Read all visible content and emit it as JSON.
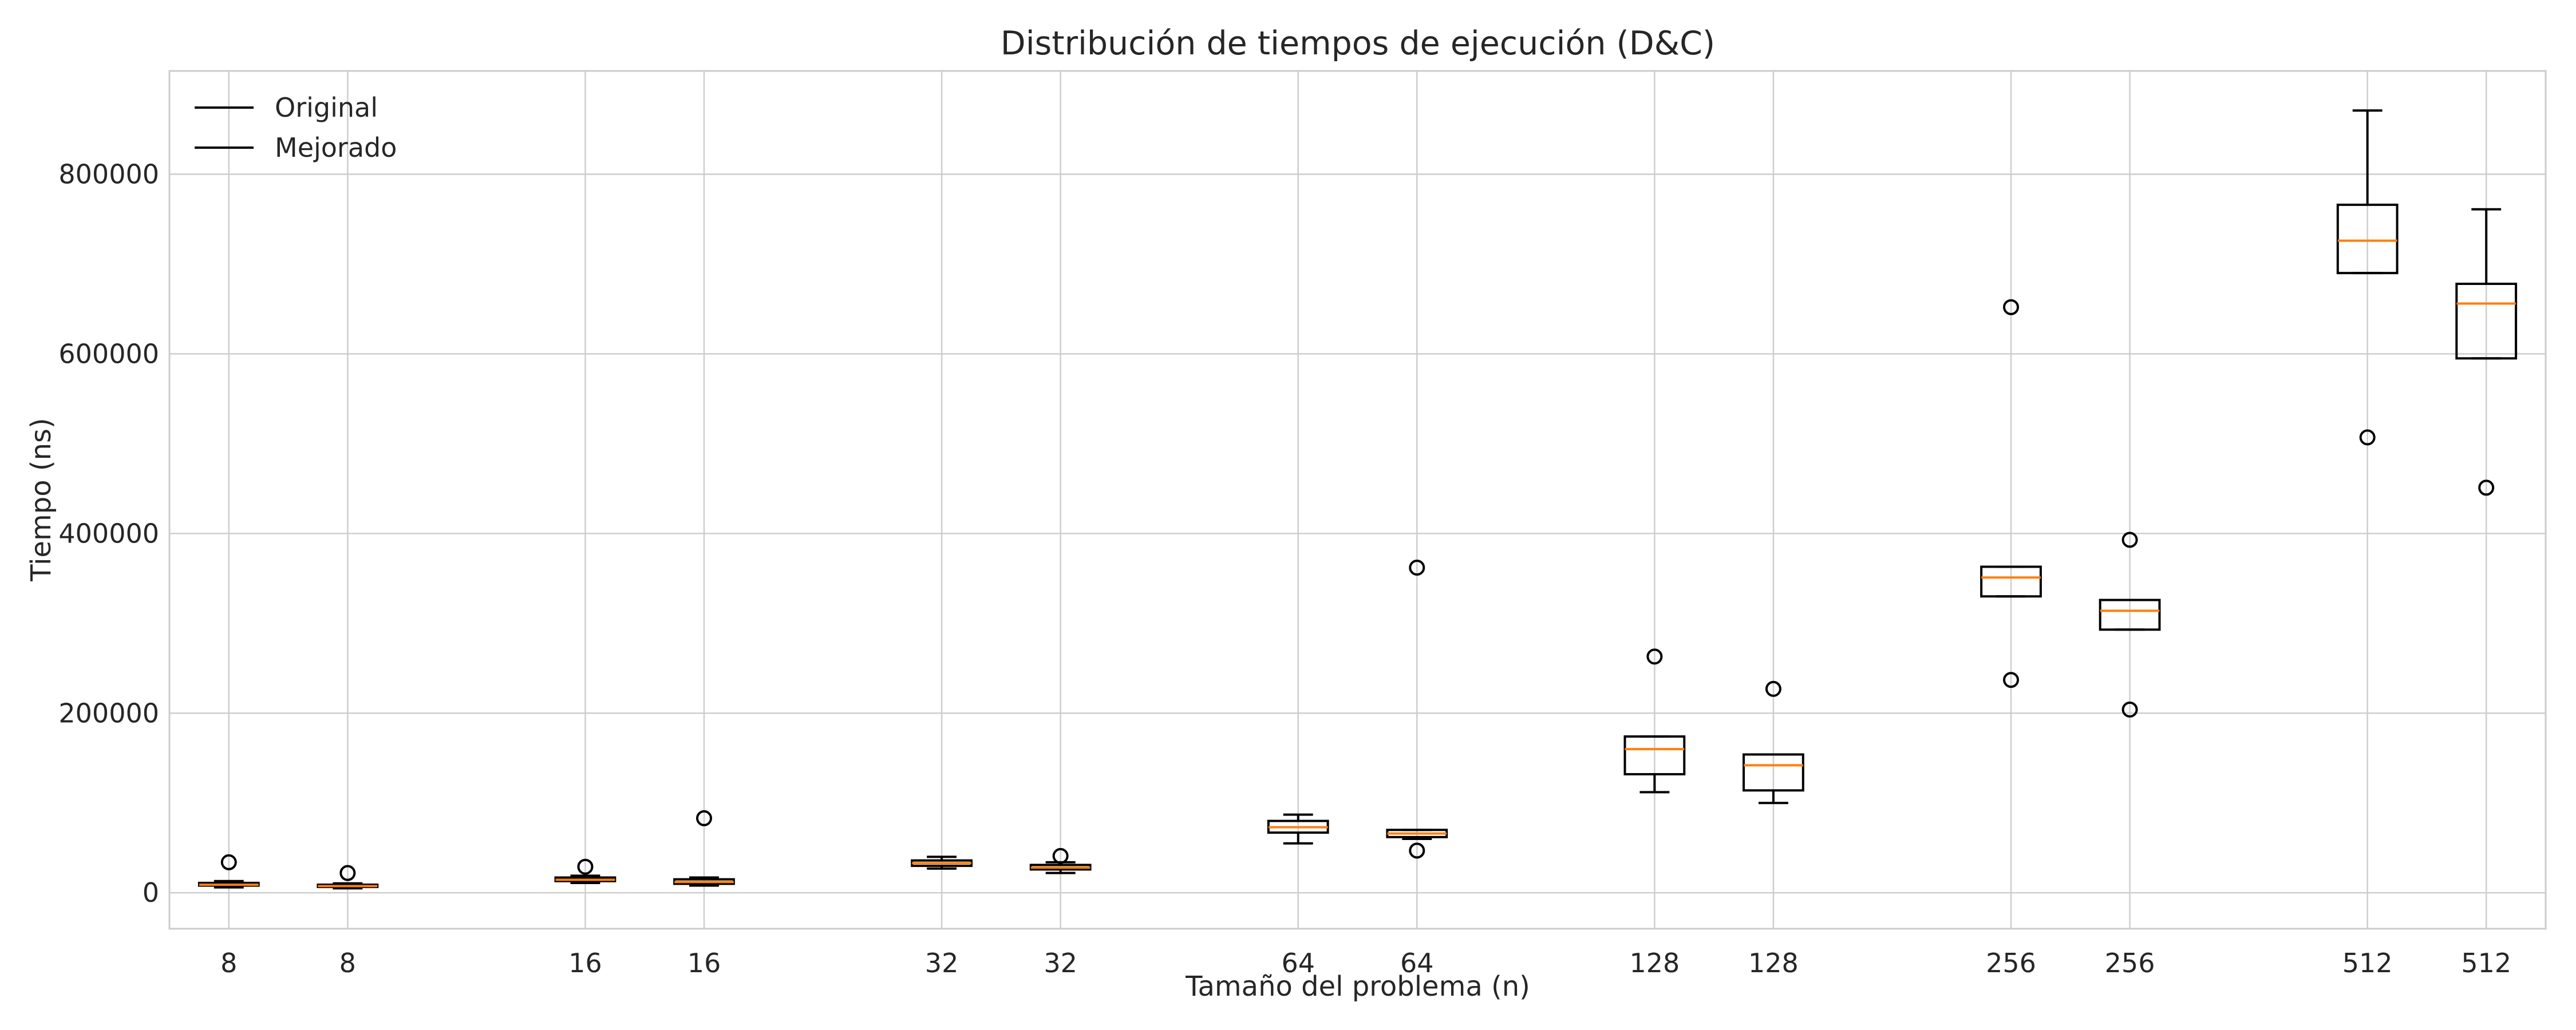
{
  "chart_data": {
    "type": "boxplot",
    "title": "Distribución de tiempos de ejecución (D&C)",
    "xlabel": "Tamaño del problema (n)",
    "ylabel": "Tiempo (ns)",
    "ylim": [
      -40000,
      915000
    ],
    "yticks": [
      0,
      200000,
      400000,
      600000,
      800000
    ],
    "ytick_labels": [
      "0",
      "200000",
      "400000",
      "600000",
      "800000"
    ],
    "grid": true,
    "legend": {
      "placement": "top-left",
      "entries": [
        "Original",
        "Mejorado"
      ]
    },
    "colors": {
      "box": "#000000",
      "median": "#ff7f0e",
      "grid": "#cccccc"
    },
    "boxes": [
      {
        "label": "8",
        "pos": 1,
        "whislo": 6000,
        "q1": 8000,
        "med": 9000,
        "q3": 11000,
        "whishi": 13000,
        "fliers": [
          34000
        ]
      },
      {
        "label": "8",
        "pos": 3,
        "whislo": 5000,
        "q1": 6500,
        "med": 7500,
        "q3": 9000,
        "whishi": 10500,
        "fliers": [
          22000
        ]
      },
      {
        "label": "16",
        "pos": 7,
        "whislo": 11000,
        "q1": 13000,
        "med": 14500,
        "q3": 17000,
        "whishi": 19000,
        "fliers": [
          29000
        ]
      },
      {
        "label": "16",
        "pos": 9,
        "whislo": 8000,
        "q1": 10000,
        "med": 12000,
        "q3": 15000,
        "whishi": 17000,
        "fliers": [
          83000
        ]
      },
      {
        "label": "32",
        "pos": 13,
        "whislo": 27000,
        "q1": 30000,
        "med": 33000,
        "q3": 36000,
        "whishi": 40000,
        "fliers": []
      },
      {
        "label": "32",
        "pos": 15,
        "whislo": 22000,
        "q1": 26000,
        "med": 28000,
        "q3": 31000,
        "whishi": 34000,
        "fliers": [
          41000
        ]
      },
      {
        "label": "64",
        "pos": 19,
        "whislo": 55000,
        "q1": 67000,
        "med": 73000,
        "q3": 80000,
        "whishi": 87000,
        "fliers": []
      },
      {
        "label": "64",
        "pos": 21,
        "whislo": 60000,
        "q1": 62000,
        "med": 66000,
        "q3": 70000,
        "whishi": 70000,
        "fliers": [
          47000,
          362000
        ]
      },
      {
        "label": "128",
        "pos": 25,
        "whislo": 112000,
        "q1": 132000,
        "med": 160000,
        "q3": 174000,
        "whishi": 174000,
        "fliers": [
          263000
        ]
      },
      {
        "label": "128",
        "pos": 27,
        "whislo": 100000,
        "q1": 114000,
        "med": 142000,
        "q3": 154000,
        "whishi": 154000,
        "fliers": [
          227000
        ]
      },
      {
        "label": "256",
        "pos": 31,
        "whislo": 330000,
        "q1": 330000,
        "med": 351000,
        "q3": 363000,
        "whishi": 363000,
        "fliers": [
          237000,
          652000
        ]
      },
      {
        "label": "256",
        "pos": 33,
        "whislo": 293000,
        "q1": 293000,
        "med": 314000,
        "q3": 326000,
        "whishi": 326000,
        "fliers": [
          204000,
          393000
        ]
      },
      {
        "label": "512",
        "pos": 37,
        "whislo": 690000,
        "q1": 690000,
        "med": 726000,
        "q3": 766000,
        "whishi": 871000,
        "fliers": [
          507000
        ]
      },
      {
        "label": "512",
        "pos": 39,
        "whislo": 595000,
        "q1": 595000,
        "med": 656000,
        "q3": 678000,
        "whishi": 761000,
        "fliers": [
          451000
        ]
      }
    ]
  }
}
